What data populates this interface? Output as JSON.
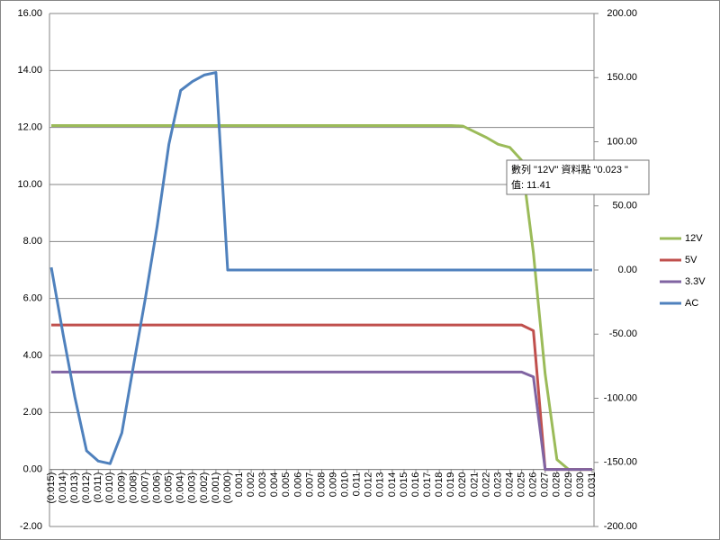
{
  "chart_data": {
    "type": "line",
    "categories": [
      "(0.015)",
      "(0.014)",
      "(0.013)",
      "(0.012)",
      "(0.011)",
      "(0.010)",
      "(0.009)",
      "(0.008)",
      "(0.007)",
      "(0.006)",
      "(0.005)",
      "(0.004)",
      "(0.003)",
      "(0.002)",
      "(0.001)",
      "(0.000)",
      "0.001",
      "0.002",
      "0.003",
      "0.004",
      "0.005",
      "0.006",
      "0.007",
      "0.008",
      "0.009",
      "0.010",
      "0.011",
      "0.012",
      "0.013",
      "0.014",
      "0.015",
      "0.016",
      "0.017",
      "0.018",
      "0.019",
      "0.020",
      "0.021",
      "0.022",
      "0.023",
      "0.024",
      "0.025",
      "0.026",
      "0.027",
      "0.028",
      "0.029",
      "0.030",
      "0.031"
    ],
    "series": [
      {
        "name": "12V",
        "color": "#9bbb59",
        "values": [
          12.07,
          12.07,
          12.07,
          12.07,
          12.07,
          12.07,
          12.07,
          12.07,
          12.07,
          12.07,
          12.07,
          12.07,
          12.07,
          12.07,
          12.07,
          12.07,
          12.07,
          12.07,
          12.07,
          12.07,
          12.07,
          12.07,
          12.07,
          12.07,
          12.07,
          12.07,
          12.07,
          12.07,
          12.07,
          12.07,
          12.07,
          12.07,
          12.07,
          12.07,
          12.07,
          12.05,
          11.85,
          11.65,
          11.41,
          11.3,
          10.85,
          7.6,
          3.35,
          0.35,
          0,
          0,
          0
        ]
      },
      {
        "name": "5V",
        "color": "#c0504d",
        "values": [
          5.07,
          5.07,
          5.07,
          5.07,
          5.07,
          5.07,
          5.07,
          5.07,
          5.07,
          5.07,
          5.07,
          5.07,
          5.07,
          5.07,
          5.07,
          5.07,
          5.07,
          5.07,
          5.07,
          5.07,
          5.07,
          5.07,
          5.07,
          5.07,
          5.07,
          5.07,
          5.07,
          5.07,
          5.07,
          5.07,
          5.07,
          5.07,
          5.07,
          5.07,
          5.07,
          5.07,
          5.07,
          5.07,
          5.07,
          5.07,
          5.07,
          4.87,
          0,
          0,
          0,
          0,
          0
        ]
      },
      {
        "name": "3.3V",
        "color": "#8064a2",
        "values": [
          3.42,
          3.42,
          3.42,
          3.42,
          3.42,
          3.42,
          3.42,
          3.42,
          3.42,
          3.42,
          3.42,
          3.42,
          3.42,
          3.42,
          3.42,
          3.42,
          3.42,
          3.42,
          3.42,
          3.42,
          3.42,
          3.42,
          3.42,
          3.42,
          3.42,
          3.42,
          3.42,
          3.42,
          3.42,
          3.42,
          3.42,
          3.42,
          3.42,
          3.42,
          3.42,
          3.42,
          3.42,
          3.42,
          3.42,
          3.42,
          3.42,
          3.25,
          0,
          0,
          0,
          0,
          0
        ]
      },
      {
        "name": "AC",
        "color": "#4f81bd",
        "axis": "y2",
        "values": [
          2,
          -50,
          -99,
          -141,
          -149,
          -151,
          -127,
          -74,
          -22,
          34,
          98,
          140,
          147,
          152,
          154,
          0,
          0,
          0,
          0,
          0,
          0,
          0,
          0,
          0,
          0,
          0,
          0,
          0,
          0,
          0,
          0,
          0,
          0,
          0,
          0,
          0,
          0,
          0,
          0,
          0,
          0,
          0,
          0,
          0,
          0,
          0,
          0
        ]
      }
    ],
    "ylim": [
      -2,
      16
    ],
    "yticks": [
      {
        "value": -2,
        "label": "-2.00"
      },
      {
        "value": 0,
        "label": "0.00"
      },
      {
        "value": 2,
        "label": "2.00"
      },
      {
        "value": 4,
        "label": "4.00"
      },
      {
        "value": 6,
        "label": "6.00"
      },
      {
        "value": 8,
        "label": "8.00"
      },
      {
        "value": 10,
        "label": "10.00"
      },
      {
        "value": 12,
        "label": "12.00"
      },
      {
        "value": 14,
        "label": "14.00"
      },
      {
        "value": 16,
        "label": "16.00"
      }
    ],
    "y2lim": [
      -200,
      200
    ],
    "y2ticks": [
      {
        "value": -200,
        "label": "-200.00"
      },
      {
        "value": -150,
        "label": "-150.00"
      },
      {
        "value": -100,
        "label": "-100.00"
      },
      {
        "value": -50,
        "label": "-50.00"
      },
      {
        "value": 0,
        "label": "0.00"
      },
      {
        "value": 50,
        "label": "50.00"
      },
      {
        "value": 100,
        "label": "100.00"
      },
      {
        "value": 150,
        "label": "150.00"
      },
      {
        "value": 200,
        "label": "200.00"
      }
    ],
    "grid": true,
    "legend": "right",
    "tooltip": [
      "數列 \"12V\" 資料點 \"0.023 \"",
      "值: 11.41"
    ]
  }
}
